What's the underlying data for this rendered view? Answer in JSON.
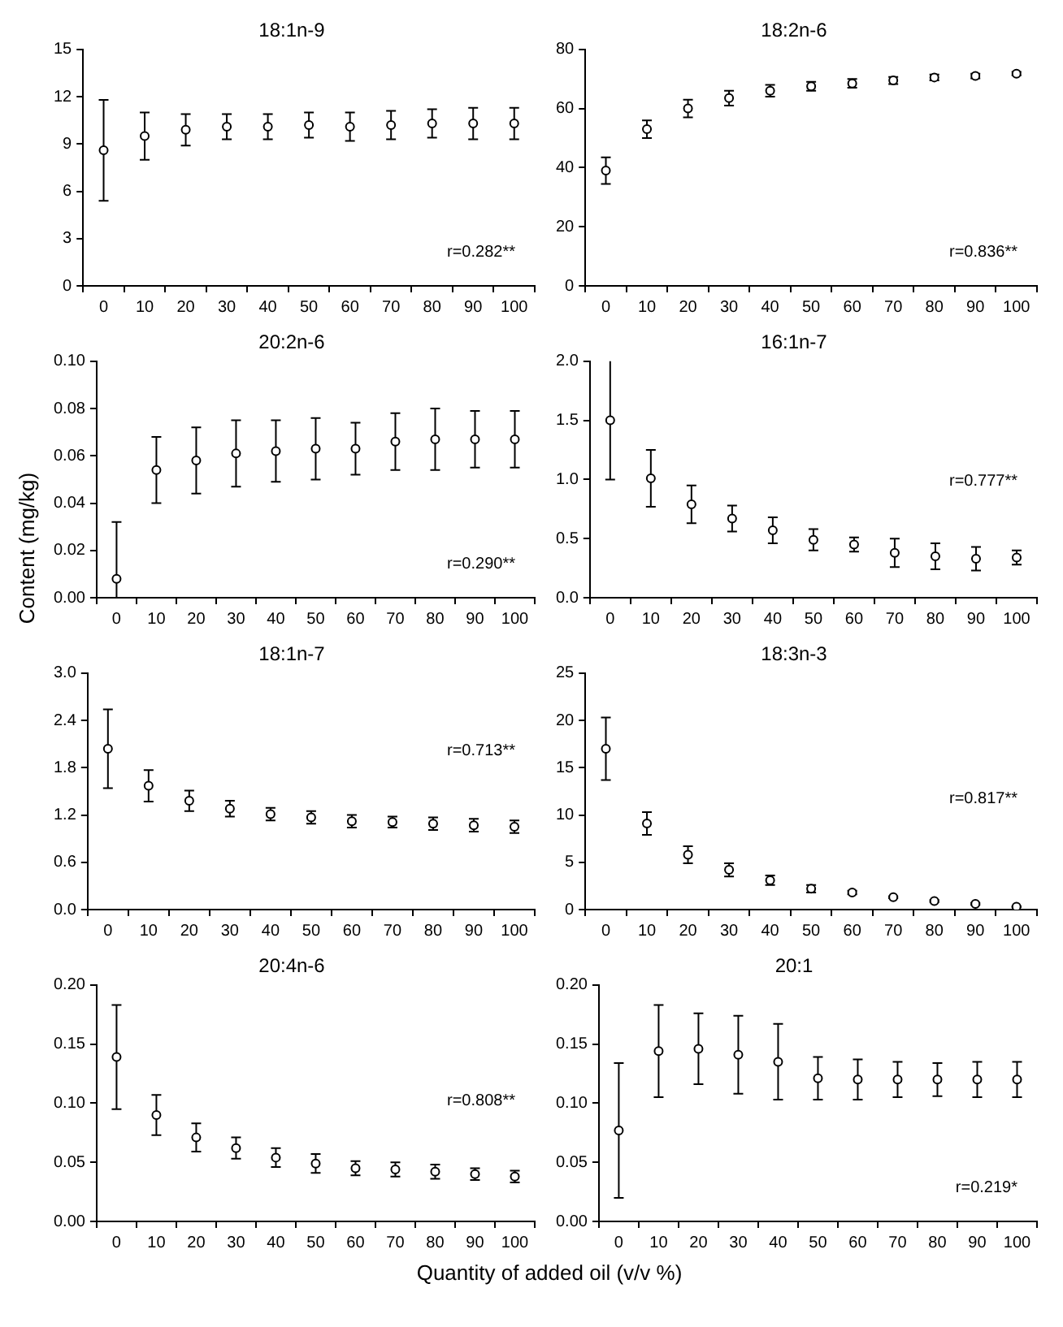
{
  "chart_data": [
    {
      "type": "scatter",
      "title": "18:1n-9",
      "categories": [
        "0",
        "10",
        "20",
        "30",
        "40",
        "50",
        "60",
        "70",
        "80",
        "90",
        "100"
      ],
      "values": [
        8.6,
        9.5,
        9.9,
        10.1,
        10.1,
        10.2,
        10.1,
        10.2,
        10.3,
        10.3,
        10.3
      ],
      "errors": [
        3.2,
        1.5,
        1.0,
        0.8,
        0.8,
        0.8,
        0.9,
        0.9,
        0.9,
        1.0,
        1.0
      ],
      "color": "#000000",
      "marker": "circle",
      "ylim": [
        0,
        15
      ],
      "yticks": [
        0,
        3,
        6,
        9,
        12,
        15
      ],
      "annotations": [
        "r=0.282**"
      ]
    },
    {
      "type": "scatter",
      "title": "18:2n-6",
      "categories": [
        "0",
        "10",
        "20",
        "30",
        "40",
        "50",
        "60",
        "70",
        "80",
        "90",
        "100"
      ],
      "values": [
        39,
        53,
        60,
        63.5,
        66,
        67.5,
        68.5,
        69.5,
        70.5,
        71,
        71.8
      ],
      "errors": [
        4.5,
        3,
        3,
        2.5,
        2,
        1.5,
        1.5,
        1.2,
        1,
        0.8,
        0.6
      ],
      "color": "#000000",
      "marker": "circle",
      "ylim": [
        0,
        80
      ],
      "yticks": [
        0,
        20,
        40,
        60,
        80
      ],
      "annotations": [
        "r=0.836**"
      ]
    },
    {
      "type": "scatter",
      "title": "20:2n-6",
      "ylabel": "Content (mg/kg)",
      "categories": [
        "0",
        "10",
        "20",
        "30",
        "40",
        "50",
        "60",
        "70",
        "80",
        "90",
        "100"
      ],
      "values": [
        0.008,
        0.054,
        0.058,
        0.061,
        0.062,
        0.063,
        0.063,
        0.066,
        0.067,
        0.067,
        0.067
      ],
      "errors": [
        [
          0,
          0.032
        ],
        0.014,
        0.014,
        0.014,
        0.013,
        0.013,
        0.011,
        0.012,
        0.013,
        0.012,
        0.012
      ],
      "color": "#000000",
      "marker": "circle",
      "ylim": [
        0,
        0.1
      ],
      "yticks": [
        {
          "value": 0,
          "label": "0.00"
        },
        {
          "value": 0.02,
          "label": "0.02"
        },
        {
          "value": 0.04,
          "label": "0.04"
        },
        {
          "value": 0.06,
          "label": "0.06"
        },
        {
          "value": 0.08,
          "label": "0.08"
        },
        {
          "value": 0.1,
          "label": "0.10"
        }
      ],
      "annotations": [
        "r=0.290**"
      ]
    },
    {
      "type": "scatter",
      "title": "16:1n-7",
      "categories": [
        "0",
        "10",
        "20",
        "30",
        "40",
        "50",
        "60",
        "70",
        "80",
        "90",
        "100"
      ],
      "values": [
        1.5,
        1.01,
        0.79,
        0.67,
        0.57,
        0.49,
        0.45,
        0.38,
        0.35,
        0.33,
        0.34
      ],
      "errors": [
        [
          1.0,
          2.0
        ],
        0.24,
        0.16,
        0.11,
        0.11,
        0.09,
        0.06,
        0.12,
        0.11,
        0.1,
        0.06
      ],
      "color": "#000000",
      "marker": "circle",
      "ylim": [
        0,
        2
      ],
      "yticks": [
        {
          "value": 0,
          "label": "0.0"
        },
        {
          "value": 0.5,
          "label": "0.5"
        },
        {
          "value": 1,
          "label": "1.0"
        },
        {
          "value": 1.5,
          "label": "1.5"
        },
        {
          "value": 2,
          "label": "2.0"
        }
      ],
      "annotations": [
        "r=0.777**"
      ]
    },
    {
      "type": "scatter",
      "title": "18:1n-7",
      "categories": [
        "0",
        "10",
        "20",
        "30",
        "40",
        "50",
        "60",
        "70",
        "80",
        "90",
        "100"
      ],
      "values": [
        2.04,
        1.57,
        1.38,
        1.28,
        1.21,
        1.17,
        1.12,
        1.11,
        1.09,
        1.07,
        1.05
      ],
      "errors": [
        0.5,
        0.2,
        0.13,
        0.1,
        0.08,
        0.08,
        0.08,
        0.07,
        0.08,
        0.08,
        0.08
      ],
      "color": "#000000",
      "marker": "circle",
      "ylim": [
        0,
        3
      ],
      "yticks": [
        {
          "value": 0,
          "label": "0.0"
        },
        {
          "value": 0.6,
          "label": "0.6"
        },
        {
          "value": 1.2,
          "label": "1.2"
        },
        {
          "value": 1.8,
          "label": "1.8"
        },
        {
          "value": 2.4,
          "label": "2.4"
        },
        {
          "value": 3,
          "label": "3.0"
        }
      ],
      "annotations": [
        "r=0.713**"
      ]
    },
    {
      "type": "scatter",
      "title": "18:3n-3",
      "categories": [
        "0",
        "10",
        "20",
        "30",
        "40",
        "50",
        "60",
        "70",
        "80",
        "90",
        "100"
      ],
      "values": [
        17,
        9.1,
        5.8,
        4.2,
        3.1,
        2.2,
        1.8,
        1.3,
        0.9,
        0.6,
        0.3
      ],
      "errors": [
        3.3,
        1.2,
        0.9,
        0.7,
        0.5,
        0.4,
        0.2,
        0.1,
        0.1,
        0.1,
        0.05
      ],
      "color": "#000000",
      "marker": "circle",
      "ylim": [
        0,
        25
      ],
      "yticks": [
        0,
        5,
        10,
        15,
        20,
        25
      ],
      "annotations": [
        "r=0.817**"
      ]
    },
    {
      "type": "scatter",
      "title": "20:4n-6",
      "xlabel": "Quantity of added oil (v/v %)",
      "categories": [
        "0",
        "10",
        "20",
        "30",
        "40",
        "50",
        "60",
        "70",
        "80",
        "90",
        "100"
      ],
      "values": [
        0.139,
        0.09,
        0.071,
        0.062,
        0.054,
        0.049,
        0.045,
        0.044,
        0.042,
        0.04,
        0.038
      ],
      "errors": [
        0.044,
        0.017,
        0.012,
        0.009,
        0.008,
        0.008,
        0.006,
        0.006,
        0.006,
        0.005,
        0.005
      ],
      "color": "#000000",
      "marker": "circle",
      "ylim": [
        0,
        0.2
      ],
      "yticks": [
        {
          "value": 0,
          "label": "0.00"
        },
        {
          "value": 0.05,
          "label": "0.05"
        },
        {
          "value": 0.1,
          "label": "0.10"
        },
        {
          "value": 0.15,
          "label": "0.15"
        },
        {
          "value": 0.2,
          "label": "0.20"
        }
      ],
      "annotations": [
        "r=0.808**"
      ]
    },
    {
      "type": "scatter",
      "title": "20:1",
      "categories": [
        "0",
        "10",
        "20",
        "30",
        "40",
        "50",
        "60",
        "70",
        "80",
        "90",
        "100"
      ],
      "values": [
        0.077,
        0.144,
        0.146,
        0.141,
        0.135,
        0.121,
        0.12,
        0.12,
        0.12,
        0.12,
        0.12
      ],
      "errors": [
        0.057,
        0.039,
        0.03,
        0.033,
        0.032,
        0.018,
        0.017,
        0.015,
        0.014,
        0.015,
        0.015
      ],
      "color": "#000000",
      "marker": "circle",
      "ylim": [
        0,
        0.2
      ],
      "yticks": [
        {
          "value": 0,
          "label": "0.00"
        },
        {
          "value": 0.05,
          "label": "0.05"
        },
        {
          "value": 0.1,
          "label": "0.10"
        },
        {
          "value": 0.15,
          "label": "0.15"
        },
        {
          "value": 0.2,
          "label": "0.20"
        }
      ],
      "annotations": [
        "r=0.219*"
      ]
    }
  ]
}
